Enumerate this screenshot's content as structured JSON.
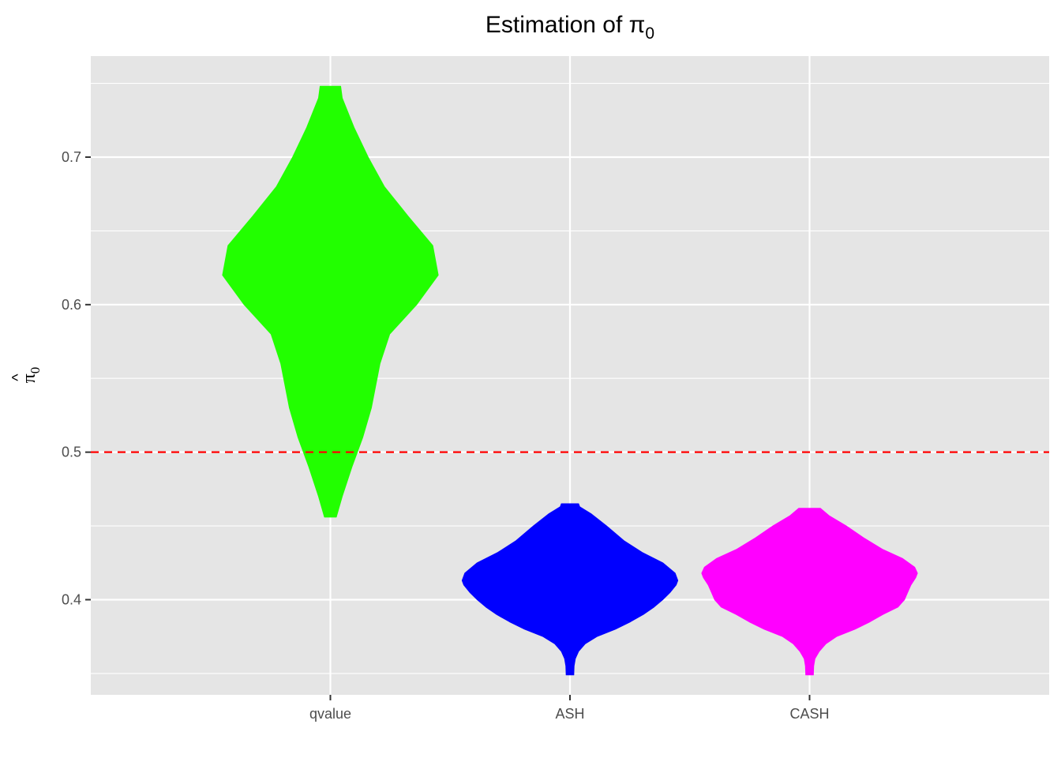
{
  "chart_data": {
    "type": "violin",
    "title": "Estimation of π",
    "title_subscript": "0",
    "xlabel": "",
    "ylabel": "π",
    "ylabel_hat": "^",
    "ylabel_subscript": "0",
    "categories": [
      "qvalue",
      "ASH",
      "CASH"
    ],
    "ylim": [
      0.3355,
      0.7685
    ],
    "yticks": [
      0.4,
      0.5,
      0.6,
      0.7
    ],
    "ytick_labels": [
      "0.4",
      "0.5",
      "0.6",
      "0.7"
    ],
    "grid": true,
    "reference_line": {
      "y": 0.5,
      "color": "#ff0000",
      "style": "dashed"
    },
    "series": [
      {
        "category": "qvalue",
        "color": "#22ff00",
        "y_min": 0.456,
        "y_max": 0.748,
        "density_profile": [
          [
            0.456,
            0.055
          ],
          [
            0.47,
            0.11
          ],
          [
            0.49,
            0.2
          ],
          [
            0.51,
            0.3
          ],
          [
            0.53,
            0.38
          ],
          [
            0.56,
            0.46
          ],
          [
            0.58,
            0.55
          ],
          [
            0.6,
            0.8
          ],
          [
            0.62,
            1.0
          ],
          [
            0.64,
            0.95
          ],
          [
            0.66,
            0.72
          ],
          [
            0.68,
            0.5
          ],
          [
            0.7,
            0.35
          ],
          [
            0.72,
            0.22
          ],
          [
            0.74,
            0.11
          ],
          [
            0.748,
            0.095
          ]
        ]
      },
      {
        "category": "ASH",
        "color": "#0000ff",
        "y_min": 0.349,
        "y_max": 0.465,
        "density_profile": [
          [
            0.349,
            0.035
          ],
          [
            0.355,
            0.038
          ],
          [
            0.36,
            0.05
          ],
          [
            0.365,
            0.08
          ],
          [
            0.37,
            0.14
          ],
          [
            0.375,
            0.25
          ],
          [
            0.38,
            0.42
          ],
          [
            0.385,
            0.56
          ],
          [
            0.39,
            0.68
          ],
          [
            0.395,
            0.78
          ],
          [
            0.4,
            0.86
          ],
          [
            0.405,
            0.93
          ],
          [
            0.41,
            0.985
          ],
          [
            0.413,
            1.0
          ],
          [
            0.418,
            0.975
          ],
          [
            0.425,
            0.86
          ],
          [
            0.432,
            0.67
          ],
          [
            0.44,
            0.5
          ],
          [
            0.45,
            0.34
          ],
          [
            0.458,
            0.2
          ],
          [
            0.463,
            0.09
          ],
          [
            0.465,
            0.08
          ]
        ]
      },
      {
        "category": "CASH",
        "color": "#ff00ff",
        "y_min": 0.349,
        "y_max": 0.462,
        "density_profile": [
          [
            0.349,
            0.035
          ],
          [
            0.355,
            0.038
          ],
          [
            0.36,
            0.05
          ],
          [
            0.365,
            0.09
          ],
          [
            0.37,
            0.15
          ],
          [
            0.375,
            0.25
          ],
          [
            0.38,
            0.42
          ],
          [
            0.385,
            0.56
          ],
          [
            0.39,
            0.68
          ],
          [
            0.395,
            0.82
          ],
          [
            0.4,
            0.88
          ],
          [
            0.405,
            0.91
          ],
          [
            0.41,
            0.94
          ],
          [
            0.415,
            0.985
          ],
          [
            0.418,
            1.0
          ],
          [
            0.422,
            0.975
          ],
          [
            0.428,
            0.86
          ],
          [
            0.434,
            0.68
          ],
          [
            0.442,
            0.5
          ],
          [
            0.45,
            0.34
          ],
          [
            0.457,
            0.18
          ],
          [
            0.462,
            0.1
          ]
        ]
      }
    ]
  }
}
